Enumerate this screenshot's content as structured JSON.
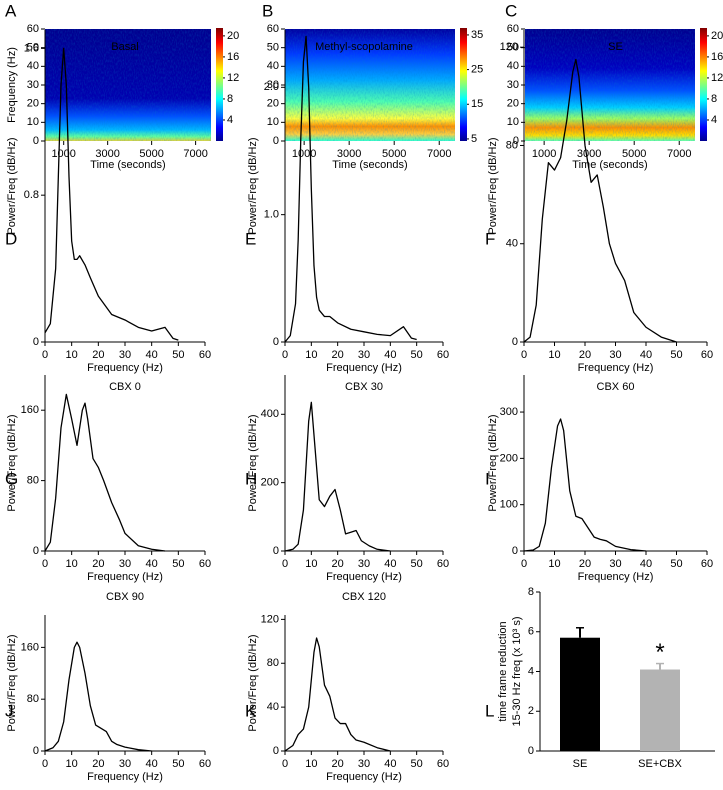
{
  "chart_data": [
    {
      "type": "spectrogram",
      "panel": "A",
      "x_label": "Time (seconds)",
      "y_label": "Frequency (Hz)",
      "xlim": [
        150,
        7700
      ],
      "xticks": [
        1000,
        3000,
        5000,
        7000
      ],
      "ylim": [
        0,
        60
      ],
      "yticks": [
        0,
        10,
        20,
        30,
        40,
        50,
        60
      ],
      "clim": [
        0,
        21.5
      ],
      "cticks": [
        4,
        8,
        12,
        16,
        20
      ]
    },
    {
      "type": "spectrogram",
      "panel": "B",
      "x_label": "Time (seconds)",
      "xlim": [
        150,
        7700
      ],
      "xticks": [
        1000,
        3000,
        5000,
        7000
      ],
      "ylim": [
        0,
        60
      ],
      "yticks": [
        0,
        10,
        20,
        30,
        40,
        50,
        60
      ],
      "clim": [
        4.4,
        37
      ],
      "cticks": [
        5,
        15,
        25,
        35
      ]
    },
    {
      "type": "spectrogram",
      "panel": "C",
      "x_label": "Time (seconds)",
      "xlim": [
        150,
        7700
      ],
      "xticks": [
        1000,
        3000,
        5000,
        7000
      ],
      "ylim": [
        0,
        60
      ],
      "yticks": [
        0,
        10,
        20,
        30,
        40,
        50,
        60
      ],
      "clim": [
        0,
        21.5
      ],
      "cticks": [
        4,
        8,
        12,
        16,
        20
      ]
    },
    {
      "type": "line",
      "panel": "D",
      "title": "Basal",
      "x_label": "Frequency (Hz)",
      "y_label": "Power/Freq (dB/Hz)",
      "color": "#000000",
      "x": [
        0,
        2,
        4,
        5,
        6,
        7,
        8,
        9,
        10,
        11,
        12,
        13,
        15,
        17,
        20,
        25,
        30,
        35,
        40,
        45,
        48,
        50
      ],
      "values": [
        0.05,
        0.1,
        0.4,
        0.9,
        1.4,
        1.6,
        1.4,
        0.9,
        0.55,
        0.45,
        0.45,
        0.47,
        0.42,
        0.35,
        0.25,
        0.15,
        0.12,
        0.08,
        0.06,
        0.08,
        0.02,
        0.01
      ],
      "xlim": [
        0,
        60
      ],
      "xticks": [
        0,
        10,
        20,
        30,
        40,
        50,
        60
      ],
      "ylim": [
        0,
        1.7
      ],
      "yticks": [
        0,
        0.8,
        1.6
      ]
    },
    {
      "type": "line",
      "panel": "E",
      "title": "Methyl-scopolamine",
      "x_label": "Frequency (Hz)",
      "y_label": "Power/Freq (dB/Hz)",
      "color": "#000000",
      "x": [
        0,
        2,
        4,
        5,
        6,
        7,
        8,
        9,
        10,
        11,
        12,
        13,
        15,
        17,
        20,
        25,
        30,
        35,
        40,
        45,
        48,
        50
      ],
      "values": [
        0,
        0.05,
        0.3,
        0.8,
        1.6,
        2.2,
        2.4,
        2.0,
        1.2,
        0.6,
        0.35,
        0.25,
        0.2,
        0.2,
        0.15,
        0.1,
        0.08,
        0.06,
        0.05,
        0.12,
        0.03,
        0.02
      ],
      "xlim": [
        0,
        60
      ],
      "xticks": [
        0,
        10,
        20,
        30,
        40,
        50,
        60
      ],
      "ylim": [
        0,
        2.45
      ],
      "yticks": [
        0,
        {
          "value": 1,
          "label": "1.0"
        },
        {
          "value": 2,
          "label": "2.0"
        }
      ]
    },
    {
      "type": "line",
      "panel": "F",
      "title": "SE",
      "x_label": "Frequency (Hz)",
      "y_label": "Power/Freq (dB/Hz)",
      "color": "#000000",
      "x": [
        0,
        2,
        4,
        6,
        8,
        10,
        12,
        14,
        16,
        17,
        18,
        20,
        22,
        24,
        26,
        28,
        30,
        33,
        36,
        40,
        45,
        50
      ],
      "values": [
        0,
        2,
        15,
        50,
        73,
        70,
        75,
        90,
        110,
        115,
        108,
        80,
        65,
        68,
        55,
        40,
        32,
        25,
        12,
        6,
        2,
        0
      ],
      "xlim": [
        0,
        60
      ],
      "xticks": [
        0,
        10,
        20,
        30,
        40,
        50,
        60
      ],
      "ylim": [
        0,
        127
      ],
      "yticks": [
        0,
        40,
        80,
        120
      ]
    },
    {
      "type": "line",
      "panel": "G",
      "title": "CBX 0",
      "x_label": "Frequency (Hz)",
      "y_label": "Power/Freq (dB/Hz)",
      "color": "#000000",
      "x": [
        0,
        2,
        4,
        6,
        8,
        10,
        12,
        14,
        15,
        16,
        18,
        20,
        22,
        25,
        28,
        30,
        35,
        40,
        45
      ],
      "values": [
        0,
        10,
        60,
        140,
        178,
        150,
        120,
        160,
        168,
        150,
        105,
        95,
        80,
        55,
        35,
        20,
        6,
        2,
        0
      ],
      "xlim": [
        0,
        60
      ],
      "xticks": [
        0,
        10,
        20,
        30,
        40,
        50,
        60
      ],
      "ylim": [
        0,
        200
      ],
      "yticks": [
        0,
        80,
        160
      ]
    },
    {
      "type": "line",
      "panel": "H",
      "title": "CBX 30",
      "x_label": "Frequency (Hz)",
      "y_label": "Power/Freq (dB/Hz)",
      "color": "#000000",
      "x": [
        0,
        3,
        5,
        7,
        9,
        10,
        11,
        13,
        15,
        17,
        19,
        21,
        23,
        25,
        27,
        29,
        32,
        35,
        40
      ],
      "values": [
        0,
        5,
        20,
        120,
        380,
        435,
        340,
        150,
        130,
        160,
        180,
        120,
        50,
        55,
        60,
        30,
        15,
        5,
        0
      ],
      "xlim": [
        0,
        60
      ],
      "xticks": [
        0,
        10,
        20,
        30,
        40,
        50,
        60
      ],
      "ylim": [
        0,
        515
      ],
      "yticks": [
        0,
        200,
        400
      ]
    },
    {
      "type": "line",
      "panel": "I",
      "title": "CBX 60",
      "x_label": "Frequency (Hz)",
      "y_label": "Power/Freq (dB/Hz)",
      "color": "#000000",
      "x": [
        0,
        3,
        5,
        7,
        9,
        11,
        12,
        13,
        15,
        17,
        19,
        21,
        23,
        25,
        27,
        30,
        35,
        40
      ],
      "values": [
        0,
        2,
        10,
        60,
        180,
        270,
        285,
        260,
        130,
        75,
        70,
        50,
        30,
        25,
        22,
        10,
        3,
        0
      ],
      "xlim": [
        0,
        60
      ],
      "xticks": [
        0,
        10,
        20,
        30,
        40,
        50,
        60
      ],
      "ylim": [
        0,
        380
      ],
      "yticks": [
        0,
        100,
        200,
        300
      ]
    },
    {
      "type": "line",
      "panel": "J",
      "title": "CBX 90",
      "x_label": "Frequency (Hz)",
      "y_label": "Power/Freq (dB/Hz)",
      "color": "#000000",
      "x": [
        0,
        3,
        5,
        7,
        9,
        11,
        12,
        13,
        15,
        17,
        19,
        21,
        23,
        25,
        27,
        30,
        35,
        40
      ],
      "values": [
        0,
        5,
        15,
        45,
        110,
        160,
        168,
        160,
        120,
        70,
        40,
        35,
        30,
        15,
        10,
        6,
        2,
        0
      ],
      "xlim": [
        0,
        60
      ],
      "xticks": [
        0,
        10,
        20,
        30,
        40,
        50,
        60
      ],
      "ylim": [
        0,
        210
      ],
      "yticks": [
        0,
        80,
        160
      ]
    },
    {
      "type": "line",
      "panel": "K",
      "title": "CBX 120",
      "x_label": "Frequency (Hz)",
      "y_label": "Power/Freq (dB/Hz)",
      "color": "#000000",
      "x": [
        0,
        3,
        5,
        7,
        9,
        11,
        12,
        13,
        15,
        17,
        19,
        21,
        23,
        25,
        27,
        30,
        35,
        40
      ],
      "values": [
        0,
        5,
        15,
        20,
        40,
        90,
        103,
        95,
        60,
        50,
        30,
        25,
        25,
        15,
        10,
        8,
        3,
        0
      ],
      "xlim": [
        0,
        60
      ],
      "xticks": [
        0,
        10,
        20,
        30,
        40,
        50,
        60
      ],
      "ylim": [
        0,
        124
      ],
      "yticks": [
        0,
        40,
        80,
        120
      ]
    },
    {
      "type": "bar",
      "panel": "L",
      "y_label": [
        "time frame reduction",
        "15-30 Hz freq (x 10³ s)"
      ],
      "categories": [
        "SE",
        "SE+CBX"
      ],
      "values": [
        5.7,
        4.1
      ],
      "errors": [
        0.5,
        0.3
      ],
      "colors": [
        "#000000",
        "#b3b3b3"
      ],
      "annotation": "*",
      "ylim": [
        0,
        8
      ],
      "yticks": [
        0,
        2,
        4,
        6,
        8
      ]
    }
  ]
}
